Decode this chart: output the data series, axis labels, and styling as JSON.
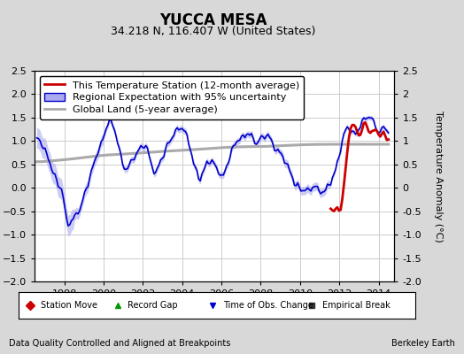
{
  "title": "YUCCA MESA",
  "subtitle": "34.218 N, 116.407 W (United States)",
  "ylabel": "Temperature Anomaly (°C)",
  "xlabel_left": "Data Quality Controlled and Aligned at Breakpoints",
  "xlabel_right": "Berkeley Earth",
  "ylim": [
    -2.0,
    2.5
  ],
  "yticks_left": [
    -2.0,
    -1.5,
    -1.0,
    -0.5,
    0.0,
    0.5,
    1.0,
    1.5,
    2.0,
    2.5
  ],
  "yticks_right": [
    -2.0,
    -1.5,
    -1.0,
    -0.5,
    0.0,
    0.5,
    1.0,
    1.5,
    2.0,
    2.5
  ],
  "xlim": [
    1996.5,
    2014.8
  ],
  "xticks": [
    1998,
    2000,
    2002,
    2004,
    2006,
    2008,
    2010,
    2012,
    2014
  ],
  "bg_color": "#d8d8d8",
  "plot_bg_color": "#ffffff",
  "grid_color": "#cccccc",
  "blue_line_color": "#0000cc",
  "blue_fill_color": "#aaaaee",
  "red_line_color": "#cc0000",
  "gray_line_color": "#aaaaaa",
  "legend_items": [
    "This Temperature Station (12-month average)",
    "Regional Expectation with 95% uncertainty",
    "Global Land (5-year average)"
  ],
  "bottom_legend": [
    {
      "marker": "D",
      "color": "#cc0000",
      "label": "Station Move"
    },
    {
      "marker": "^",
      "color": "#009900",
      "label": "Record Gap"
    },
    {
      "marker": "v",
      "color": "#0000cc",
      "label": "Time of Obs. Change"
    },
    {
      "marker": "s",
      "color": "#333333",
      "label": "Empirical Break"
    }
  ],
  "title_fontsize": 12,
  "subtitle_fontsize": 9,
  "tick_fontsize": 8,
  "label_fontsize": 8,
  "legend_fontsize": 8
}
